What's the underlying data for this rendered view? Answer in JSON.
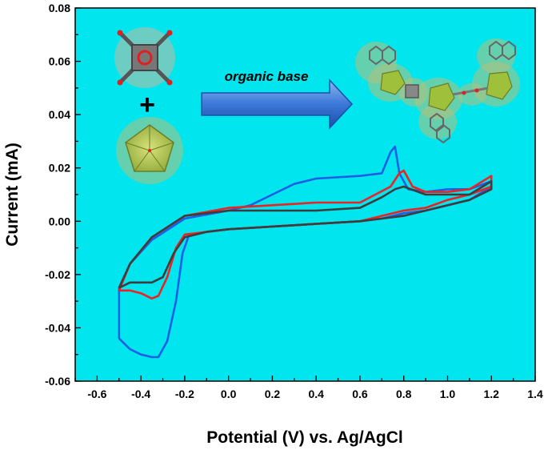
{
  "chart_data": {
    "type": "line",
    "title": "",
    "xlabel": "Potential (V) vs. Ag/AgCl",
    "ylabel": "Current (mA)",
    "xlim": [
      -0.7,
      1.4
    ],
    "ylim": [
      -0.06,
      0.08
    ],
    "xticks": [
      -0.6,
      -0.4,
      -0.2,
      0.0,
      0.2,
      0.4,
      0.6,
      0.8,
      1.0,
      1.2,
      1.4
    ],
    "xtick_labels": [
      "-0.6",
      "-0.4",
      "-0.2",
      "0.0",
      "0.2",
      "0.4",
      "0.6",
      "0.8",
      "1.0",
      "1.2",
      "1.4"
    ],
    "yticks": [
      -0.06,
      -0.04,
      -0.02,
      0.0,
      0.02,
      0.04,
      0.06,
      0.08
    ],
    "ytick_labels": [
      "-0.06",
      "-0.04",
      "-0.02",
      "0.00",
      "0.02",
      "0.04",
      "0.06",
      "0.08"
    ],
    "grid": false,
    "legend": "none",
    "background_color": "#00e5ee",
    "series": [
      {
        "color": "#1f5fe6",
        "points": [
          [
            -0.5,
            -0.044
          ],
          [
            -0.45,
            -0.048
          ],
          [
            -0.4,
            -0.05
          ],
          [
            -0.35,
            -0.051
          ],
          [
            -0.32,
            -0.051
          ],
          [
            -0.28,
            -0.045
          ],
          [
            -0.24,
            -0.03
          ],
          [
            -0.21,
            -0.012
          ],
          [
            -0.18,
            -0.005
          ],
          [
            -0.1,
            -0.004
          ],
          [
            0.0,
            -0.003
          ],
          [
            0.2,
            -0.002
          ],
          [
            0.4,
            -0.001
          ],
          [
            0.6,
            0.0
          ],
          [
            0.7,
            0.001
          ],
          [
            0.8,
            0.003
          ],
          [
            0.9,
            0.004
          ],
          [
            1.0,
            0.006
          ],
          [
            1.1,
            0.008
          ],
          [
            1.2,
            0.013
          ],
          [
            1.2,
            0.015
          ],
          [
            1.1,
            0.012
          ],
          [
            1.0,
            0.012
          ],
          [
            0.9,
            0.011
          ],
          [
            0.82,
            0.012
          ],
          [
            0.78,
            0.018
          ],
          [
            0.76,
            0.028
          ],
          [
            0.74,
            0.026
          ],
          [
            0.7,
            0.018
          ],
          [
            0.6,
            0.017
          ],
          [
            0.4,
            0.016
          ],
          [
            0.3,
            0.014
          ],
          [
            0.2,
            0.01
          ],
          [
            0.1,
            0.006
          ],
          [
            0.0,
            0.004
          ],
          [
            -0.2,
            0.001
          ],
          [
            -0.35,
            -0.007
          ],
          [
            -0.45,
            -0.016
          ],
          [
            -0.5,
            -0.025
          ],
          [
            -0.5,
            -0.044
          ]
        ]
      },
      {
        "color": "#ee2222",
        "points": [
          [
            -0.5,
            -0.026
          ],
          [
            -0.45,
            -0.026
          ],
          [
            -0.4,
            -0.027
          ],
          [
            -0.35,
            -0.029
          ],
          [
            -0.32,
            -0.028
          ],
          [
            -0.28,
            -0.021
          ],
          [
            -0.24,
            -0.01
          ],
          [
            -0.2,
            -0.005
          ],
          [
            -0.1,
            -0.004
          ],
          [
            0.0,
            -0.003
          ],
          [
            0.2,
            -0.002
          ],
          [
            0.4,
            -0.001
          ],
          [
            0.6,
            0.0
          ],
          [
            0.7,
            0.002
          ],
          [
            0.8,
            0.004
          ],
          [
            0.9,
            0.005
          ],
          [
            1.0,
            0.008
          ],
          [
            1.1,
            0.01
          ],
          [
            1.2,
            0.013
          ],
          [
            1.2,
            0.017
          ],
          [
            1.1,
            0.012
          ],
          [
            1.0,
            0.011
          ],
          [
            0.9,
            0.011
          ],
          [
            0.84,
            0.013
          ],
          [
            0.8,
            0.019
          ],
          [
            0.78,
            0.018
          ],
          [
            0.74,
            0.013
          ],
          [
            0.6,
            0.007
          ],
          [
            0.4,
            0.007
          ],
          [
            0.2,
            0.006
          ],
          [
            0.0,
            0.005
          ],
          [
            -0.2,
            0.002
          ],
          [
            -0.35,
            -0.006
          ],
          [
            -0.45,
            -0.016
          ],
          [
            -0.5,
            -0.026
          ]
        ]
      },
      {
        "color": "#3d3d3d",
        "points": [
          [
            -0.5,
            -0.025
          ],
          [
            -0.45,
            -0.023
          ],
          [
            -0.4,
            -0.023
          ],
          [
            -0.35,
            -0.023
          ],
          [
            -0.3,
            -0.021
          ],
          [
            -0.25,
            -0.012
          ],
          [
            -0.2,
            -0.006
          ],
          [
            -0.1,
            -0.004
          ],
          [
            0.0,
            -0.003
          ],
          [
            0.2,
            -0.002
          ],
          [
            0.4,
            -0.001
          ],
          [
            0.6,
            0.0
          ],
          [
            0.7,
            0.001
          ],
          [
            0.8,
            0.002
          ],
          [
            0.9,
            0.004
          ],
          [
            1.0,
            0.006
          ],
          [
            1.1,
            0.008
          ],
          [
            1.2,
            0.012
          ],
          [
            1.2,
            0.015
          ],
          [
            1.1,
            0.01
          ],
          [
            1.0,
            0.01
          ],
          [
            0.9,
            0.01
          ],
          [
            0.8,
            0.013
          ],
          [
            0.76,
            0.012
          ],
          [
            0.7,
            0.009
          ],
          [
            0.6,
            0.005
          ],
          [
            0.4,
            0.004
          ],
          [
            0.2,
            0.004
          ],
          [
            0.0,
            0.004
          ],
          [
            -0.2,
            0.002
          ],
          [
            -0.35,
            -0.006
          ],
          [
            -0.45,
            -0.016
          ],
          [
            -0.5,
            -0.025
          ]
        ]
      }
    ]
  },
  "annotation": {
    "arrow_text": "organic base",
    "plus_sign": "+",
    "arrow_color": "#3b78d8",
    "molecule_labels": [
      "squarate-ligand-icon",
      "polyoxometalate-cluster-icon",
      "product-complex-icon"
    ]
  }
}
